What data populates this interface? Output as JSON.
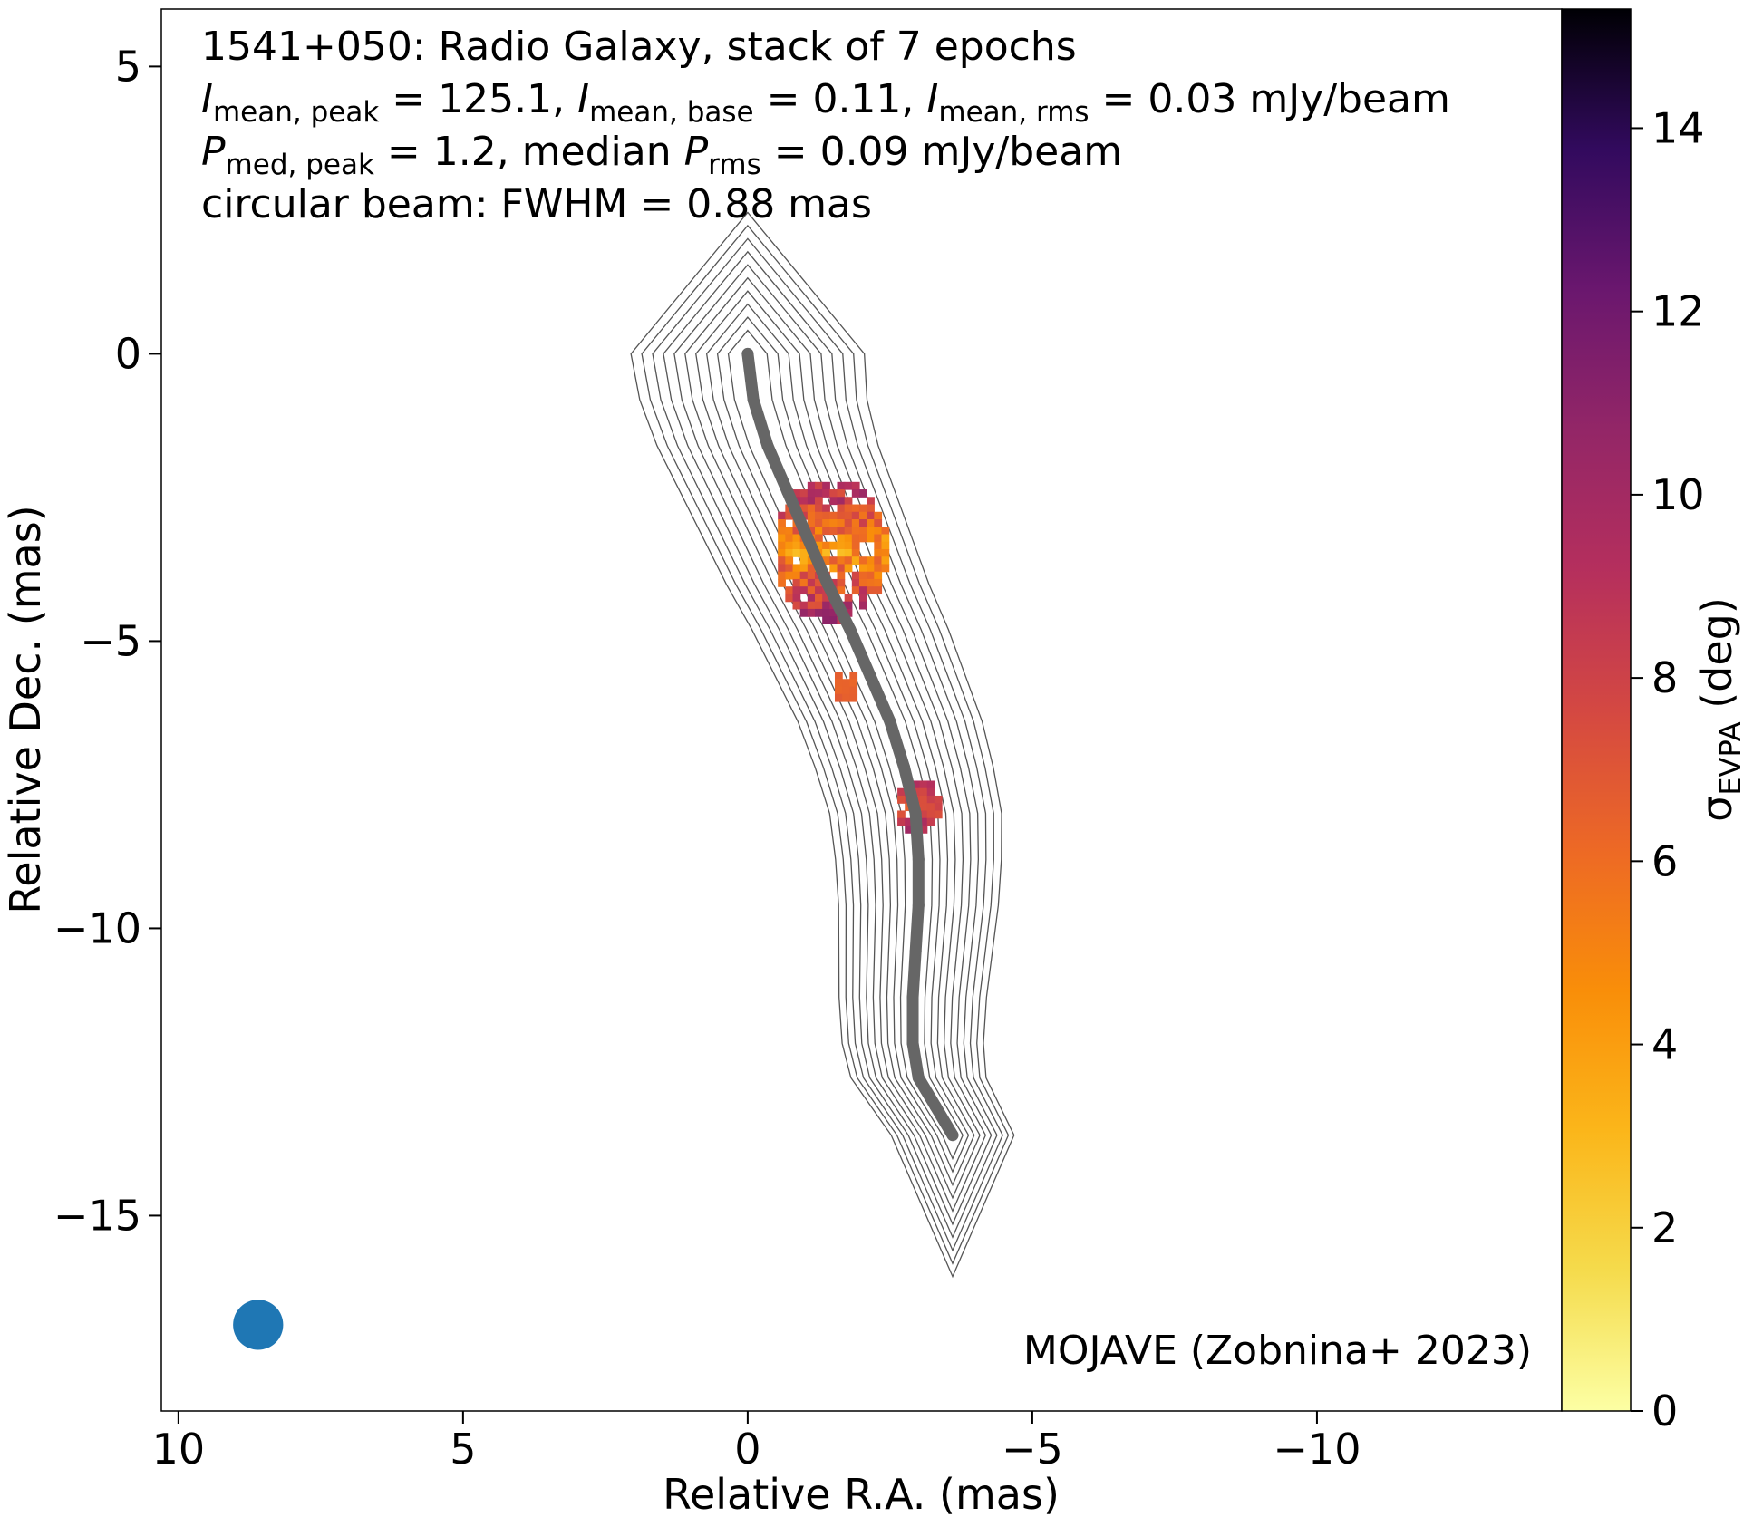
{
  "chart_data": {
    "type": "heatmap",
    "xlabel": "Relative R.A. (mas)",
    "ylabel": "Relative Dec. (mas)",
    "xlim": [
      10.3,
      -14.3
    ],
    "ylim": [
      -18.4,
      6.0
    ],
    "x_ticks": [
      10,
      5,
      0,
      -5,
      -10
    ],
    "x_tick_labels": [
      "10",
      "5",
      "0",
      "−5",
      "−10"
    ],
    "y_ticks": [
      5,
      0,
      -5,
      -10,
      -15
    ],
    "y_tick_labels": [
      "5",
      "0",
      "−5",
      "−10",
      "−15"
    ],
    "grid": false,
    "annotation": {
      "line1": "1541+050: Radio Galaxy, stack of 7 epochs",
      "line2": {
        "I_sym": "I",
        "peak_sub": "mean, peak",
        "peak_val": " = 125.1, ",
        "base_sub": "mean, base",
        "base_val": " = 0.11, ",
        "rms_sub": "mean, rms",
        "rms_val": " = 0.03 mJy/beam"
      },
      "line3": {
        "P_sym": "P",
        "peak_sub": "med, peak",
        "peak_val": " = 1.2, median ",
        "rms_sub": "rms",
        "rms_val": " = 0.09 mJy/beam"
      },
      "line4": "circular beam: FWHM = 0.88 mas"
    },
    "credit": "MOJAVE (Zobnina+ 2023)",
    "colorbar": {
      "label_symbol": "σ",
      "label_sub": "EVPA",
      "label_unit": " (deg)",
      "range": [
        0,
        15.3
      ],
      "ticks": [
        0,
        2,
        4,
        6,
        8,
        10,
        12,
        14
      ],
      "tick_labels": [
        "0",
        "2",
        "4",
        "6",
        "8",
        "10",
        "12",
        "14"
      ],
      "colormap": "inferno_r"
    },
    "beam": {
      "x": 8.6,
      "y": -16.9,
      "fwhm_mas": 0.88,
      "color": "#1f77b4"
    },
    "ridgeline": {
      "color": "#666666",
      "points": [
        [
          0.0,
          0.0
        ],
        [
          -0.1,
          -0.8
        ],
        [
          -0.35,
          -1.6
        ],
        [
          -0.7,
          -2.4
        ],
        [
          -1.05,
          -3.2
        ],
        [
          -1.4,
          -4.0
        ],
        [
          -1.8,
          -4.8
        ],
        [
          -2.15,
          -5.6
        ],
        [
          -2.5,
          -6.4
        ],
        [
          -2.75,
          -7.2
        ],
        [
          -2.95,
          -8.0
        ],
        [
          -3.0,
          -8.8
        ],
        [
          -3.0,
          -9.6
        ],
        [
          -2.95,
          -10.4
        ],
        [
          -2.9,
          -11.2
        ],
        [
          -2.9,
          -12.0
        ],
        [
          -3.0,
          -12.6
        ],
        [
          -3.3,
          -13.1
        ],
        [
          -3.6,
          -13.6
        ]
      ]
    },
    "sigma_evpa_regions": [
      {
        "x": [
          -0.4,
          -2.4
        ],
        "y": [
          -2.1,
          -4.6
        ],
        "value_range": [
          2,
          12
        ]
      },
      {
        "x": [
          -1.4,
          -1.9
        ],
        "y": [
          -5.4,
          -6.0
        ],
        "value_range": [
          6,
          7
        ]
      },
      {
        "x": [
          -2.5,
          -3.3
        ],
        "y": [
          -7.3,
          -8.3
        ],
        "value_range": [
          6,
          11
        ]
      }
    ],
    "contour_levels_count": 10
  }
}
